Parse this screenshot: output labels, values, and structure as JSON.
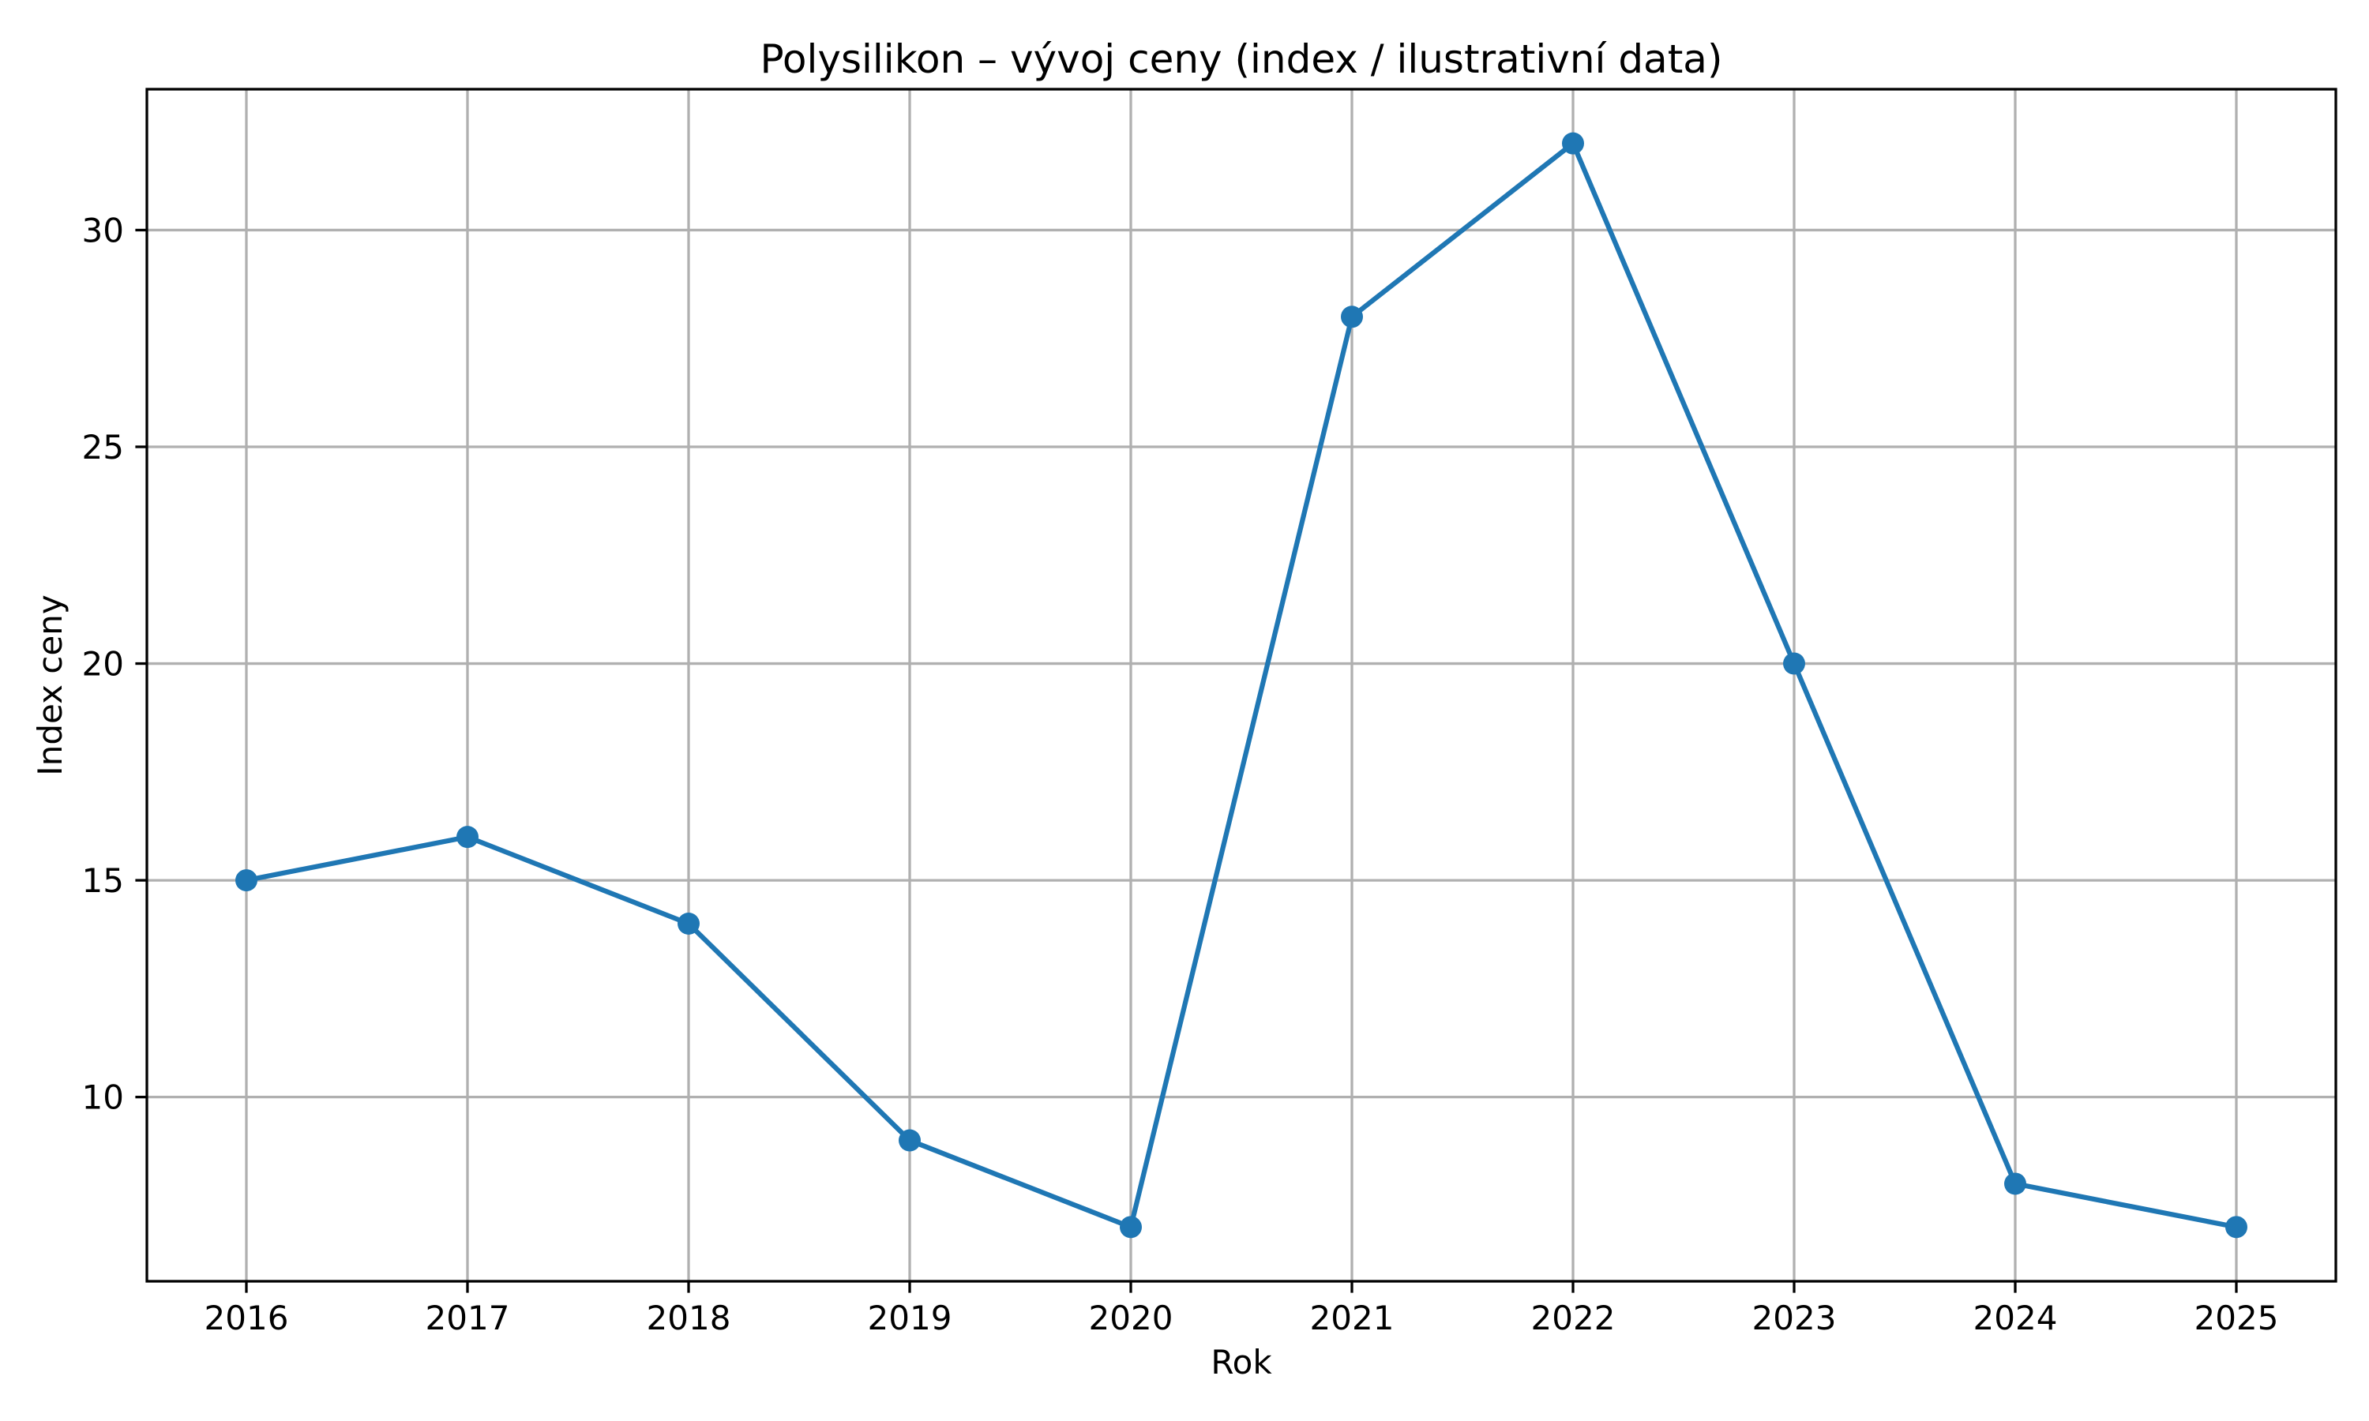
{
  "page": {
    "background": "#ffffff"
  },
  "chart_data": {
    "type": "line",
    "title": "Polysilikon – vývoj ceny (index / ilustrativní data)",
    "xlabel": "Rok",
    "ylabel": "Index ceny",
    "x": [
      2016,
      2017,
      2018,
      2019,
      2020,
      2021,
      2022,
      2023,
      2024,
      2025
    ],
    "series": [
      {
        "name": "Index ceny",
        "values": [
          15,
          16,
          14,
          9,
          7,
          28,
          32,
          20,
          8,
          7
        ],
        "color": "#1f77b4",
        "marker": "circle"
      }
    ],
    "xticks": [
      2016,
      2017,
      2018,
      2019,
      2020,
      2021,
      2022,
      2023,
      2024,
      2025
    ],
    "yticks": [
      10,
      15,
      20,
      25,
      30
    ],
    "xlim": [
      2015.55,
      2025.45
    ],
    "ylim": [
      5.75,
      33.25
    ],
    "grid": true,
    "grid_color": "#b0b0b0",
    "axis_color": "#000000",
    "plot_background": "#ffffff",
    "legend": "none"
  }
}
